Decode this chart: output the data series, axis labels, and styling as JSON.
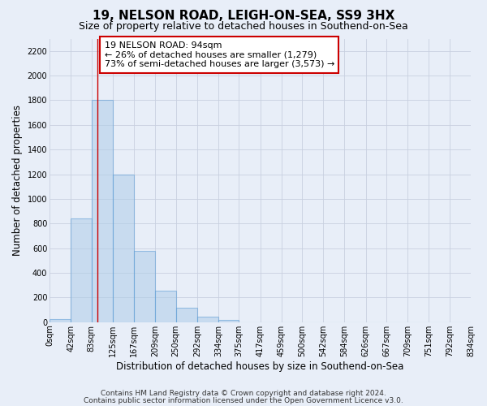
{
  "title": "19, NELSON ROAD, LEIGH-ON-SEA, SS9 3HX",
  "subtitle": "Size of property relative to detached houses in Southend-on-Sea",
  "xlabel": "Distribution of detached houses by size in Southend-on-Sea",
  "ylabel": "Number of detached properties",
  "bar_edges": [
    0,
    42,
    83,
    125,
    167,
    209,
    250,
    292,
    334,
    375,
    417,
    459,
    500,
    542,
    584,
    626,
    667,
    709,
    751,
    792,
    834
  ],
  "bar_values": [
    25,
    840,
    1800,
    1200,
    580,
    255,
    115,
    42,
    20,
    0,
    0,
    0,
    0,
    0,
    0,
    0,
    0,
    0,
    0,
    0
  ],
  "tick_labels": [
    "0sqm",
    "42sqm",
    "83sqm",
    "125sqm",
    "167sqm",
    "209sqm",
    "250sqm",
    "292sqm",
    "334sqm",
    "375sqm",
    "417sqm",
    "459sqm",
    "500sqm",
    "542sqm",
    "584sqm",
    "626sqm",
    "667sqm",
    "709sqm",
    "751sqm",
    "792sqm",
    "834sqm"
  ],
  "bar_color": "#aecde8",
  "bar_edge_color": "#5b9bd5",
  "bar_alpha": 0.55,
  "property_line_x": 94,
  "property_line_color": "#cc0000",
  "annotation_line1": "19 NELSON ROAD: 94sqm",
  "annotation_line2": "← 26% of detached houses are smaller (1,279)",
  "annotation_line3": "73% of semi-detached houses are larger (3,573) →",
  "annotation_box_color": "#ffffff",
  "annotation_box_edge": "#cc0000",
  "ylim": [
    0,
    2300
  ],
  "yticks": [
    0,
    200,
    400,
    600,
    800,
    1000,
    1200,
    1400,
    1600,
    1800,
    2000,
    2200
  ],
  "footer1": "Contains HM Land Registry data © Crown copyright and database right 2024.",
  "footer2": "Contains public sector information licensed under the Open Government Licence v3.0.",
  "bg_color": "#e8eef8",
  "grid_color": "#c8d0e0",
  "title_fontsize": 11,
  "subtitle_fontsize": 9,
  "axis_label_fontsize": 8.5,
  "tick_fontsize": 7,
  "annotation_fontsize": 8,
  "footer_fontsize": 6.5
}
